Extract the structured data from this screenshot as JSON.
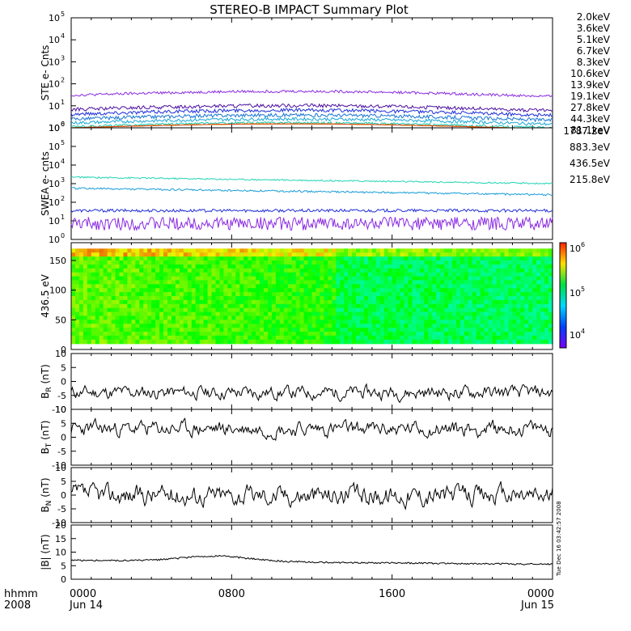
{
  "title": "STEREO-B IMPACT Summary Plot",
  "footer": {
    "left_top": "hhmm",
    "left_bottom": "2008",
    "generated": "Tue Dec 16 03:42:57 2008"
  },
  "colorbar": {
    "ticks": [
      "10",
      "10",
      "10"
    ],
    "exps": [
      "6",
      "5",
      "4"
    ]
  },
  "chart_data": [
    {
      "id": "ste",
      "type": "line",
      "ylabel": "STE e- Cnts",
      "yscale": "log",
      "ylim": [
        1,
        100000
      ],
      "ytick_exps": [
        "0",
        "1",
        "2",
        "3",
        "4",
        "5"
      ],
      "series": [
        {
          "name": "2.0keV",
          "color": "#8a2be2",
          "level": 1.48,
          "noise": 0.06
        },
        {
          "name": "3.6keV",
          "color": "#4b0fa0",
          "level": 0.83,
          "noise": 0.08
        },
        {
          "name": "5.1keV",
          "color": "#1f2fd6",
          "level": 0.62,
          "noise": 0.08
        },
        {
          "name": "6.7keV",
          "color": "#1976d2",
          "level": 0.4,
          "noise": 0.08
        },
        {
          "name": "8.3keV",
          "color": "#1aa8d8",
          "level": 0.22,
          "noise": 0.07
        },
        {
          "name": "10.6keV",
          "color": "#16c7b0",
          "level": 0.05,
          "noise": 0.05
        },
        {
          "name": "13.9keV",
          "color": "#1fcf4a",
          "level": 0.0,
          "noise": 0
        },
        {
          "name": "19.1keV",
          "color": "#b4d400",
          "level": 0.0,
          "noise": 0
        },
        {
          "name": "27.8keV",
          "color": "#e8d400",
          "level": 0.0,
          "noise": 0
        },
        {
          "name": "44.3keV",
          "color": "#f09000",
          "level": 0.0,
          "noise": 0
        },
        {
          "name": "81.1keV",
          "color": "#e03a10",
          "level": 0.0,
          "noise": 0
        }
      ]
    },
    {
      "id": "swea",
      "type": "line",
      "ylabel": "SWEA e- cnts",
      "yscale": "log",
      "ylim": [
        1,
        1000000
      ],
      "ytick_exps": [
        "0",
        "1",
        "2",
        "3",
        "4",
        "5",
        "6"
      ],
      "series": [
        {
          "name": "1787.2eV",
          "color": "#8a2be2",
          "level": 0.85,
          "noise": 0.35
        },
        {
          "name": "883.3eV",
          "color": "#1f2fd6",
          "level": 1.55,
          "noise": 0.08
        },
        {
          "name": "436.5eV",
          "color": "#1a9ed8",
          "level": 2.75,
          "noise": 0.05
        },
        {
          "name": "215.8eV",
          "color": "#22d4b4",
          "level": 3.35,
          "noise": 0.04
        }
      ]
    },
    {
      "id": "spec",
      "type": "heatmap",
      "ylabel": "436.5 eV",
      "ylim": [
        0,
        180
      ],
      "yticks": [
        0,
        50,
        100,
        150
      ],
      "z_log_range": [
        3.7,
        6.0
      ]
    },
    {
      "id": "br",
      "type": "line",
      "ylabel": "B",
      "ysub": "R",
      "yunit": " (nT)",
      "ylim": [
        -10,
        10
      ],
      "yticks": [
        -10,
        -5,
        0,
        5,
        10
      ],
      "baseline": -4,
      "noise": 2.6,
      "seed": 11
    },
    {
      "id": "bt",
      "type": "line",
      "ylabel": "B",
      "ysub": "T",
      "yunit": " (nT)",
      "ylim": [
        -10,
        10
      ],
      "yticks": [
        -10,
        -5,
        0,
        5,
        10
      ],
      "baseline": 3,
      "noise": 3.0,
      "seed": 23
    },
    {
      "id": "bn",
      "type": "line",
      "ylabel": "B",
      "ysub": "N",
      "yunit": " (nT)",
      "ylim": [
        -10,
        10
      ],
      "yticks": [
        -10,
        -5,
        0,
        5,
        10
      ],
      "baseline": 0,
      "noise": 4.0,
      "seed": 37
    },
    {
      "id": "bmag",
      "type": "line",
      "ylabel": "|B| (nT)",
      "ylim": [
        0,
        20
      ],
      "yticks": [
        0,
        5,
        10,
        15,
        20
      ],
      "baseline": 7,
      "noise": 0.6,
      "seed": 51
    }
  ],
  "x_axis": {
    "ticks": [
      {
        "label": "0000",
        "sub": "Jun 14"
      },
      {
        "label": "0800",
        "sub": ""
      },
      {
        "label": "1600",
        "sub": ""
      },
      {
        "label": "0000",
        "sub": "Jun 15"
      }
    ]
  }
}
